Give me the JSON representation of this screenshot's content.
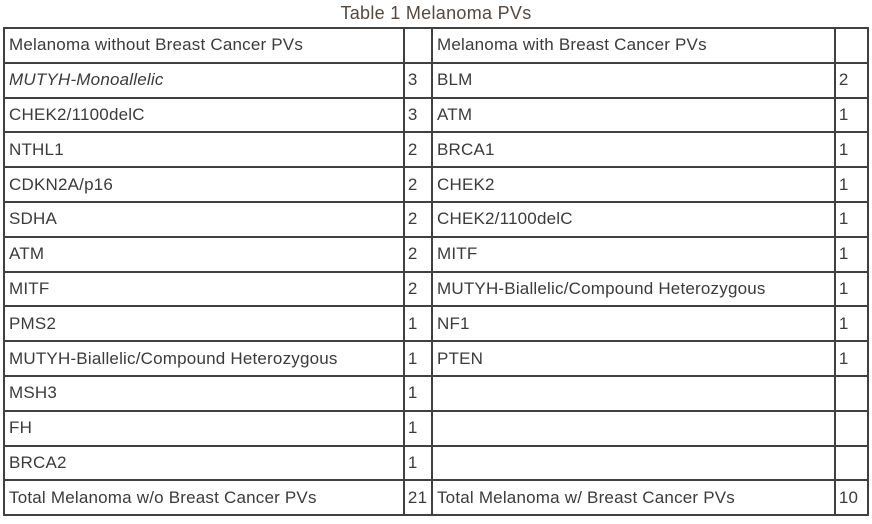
{
  "caption": "Table 1 Melanoma PVs",
  "colors": {
    "border": "#404040",
    "cell_text": "#3b3b3b",
    "caption_text": "#55483f",
    "background": "#ffffff"
  },
  "table": {
    "left_header": "Melanoma without Breast Cancer PVs",
    "right_header": "Melanoma with Breast Cancer PVs",
    "rows": [
      {
        "left_gene": "MUTYH-Monoallelic",
        "left_italic": true,
        "left_count": "3",
        "right_gene": "BLM",
        "right_count": "2"
      },
      {
        "left_gene": "CHEK2/1100delC",
        "left_count": "3",
        "right_gene": "ATM",
        "right_count": "1"
      },
      {
        "left_gene": "NTHL1",
        "left_count": "2",
        "right_gene": "BRCA1",
        "right_count": "1"
      },
      {
        "left_gene": "CDKN2A/p16",
        "left_count": "2",
        "right_gene": "CHEK2",
        "right_count": "1"
      },
      {
        "left_gene": "SDHA",
        "left_count": "2",
        "right_gene": "CHEK2/1100delC",
        "right_count": "1"
      },
      {
        "left_gene": "ATM",
        "left_count": "2",
        "right_gene": "MITF",
        "right_count": "1"
      },
      {
        "left_gene": "MITF",
        "left_count": "2",
        "right_gene": "MUTYH-Biallelic/Compound Heterozygous",
        "right_count": "1"
      },
      {
        "left_gene": "PMS2",
        "left_count": "1",
        "right_gene": "NF1",
        "right_count": "1"
      },
      {
        "left_gene": "MUTYH-Biallelic/Compound Heterozygous",
        "left_count": "1",
        "right_gene": "PTEN",
        "right_count": "1"
      },
      {
        "left_gene": "MSH3",
        "left_count": "1",
        "right_gene": "",
        "right_count": ""
      },
      {
        "left_gene": "FH",
        "left_count": "1",
        "right_gene": "",
        "right_count": ""
      },
      {
        "left_gene": "BRCA2",
        "left_count": "1",
        "right_gene": "",
        "right_count": ""
      }
    ],
    "totals": {
      "left_label": "Total Melanoma w/o Breast Cancer PVs",
      "left_count": "21",
      "right_label": "Total Melanoma w/ Breast Cancer PVs",
      "right_count": "10"
    }
  }
}
